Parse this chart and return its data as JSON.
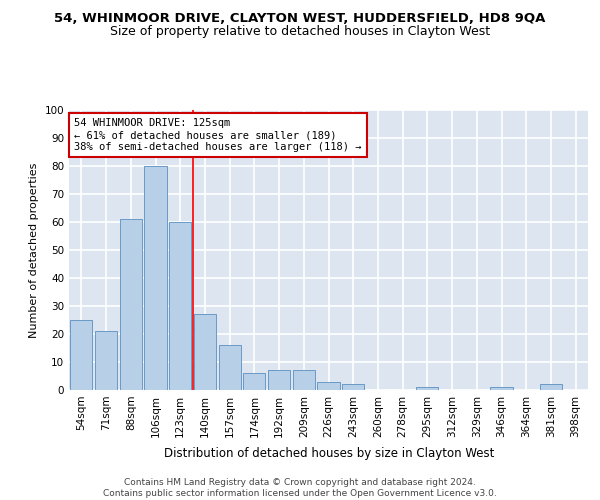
{
  "title1": "54, WHINMOOR DRIVE, CLAYTON WEST, HUDDERSFIELD, HD8 9QA",
  "title2": "Size of property relative to detached houses in Clayton West",
  "xlabel": "Distribution of detached houses by size in Clayton West",
  "ylabel": "Number of detached properties",
  "bar_labels": [
    "54sqm",
    "71sqm",
    "88sqm",
    "106sqm",
    "123sqm",
    "140sqm",
    "157sqm",
    "174sqm",
    "192sqm",
    "209sqm",
    "226sqm",
    "243sqm",
    "260sqm",
    "278sqm",
    "295sqm",
    "312sqm",
    "329sqm",
    "346sqm",
    "364sqm",
    "381sqm",
    "398sqm"
  ],
  "bar_values": [
    25,
    21,
    61,
    80,
    60,
    27,
    16,
    6,
    7,
    7,
    3,
    2,
    0,
    0,
    1,
    0,
    0,
    1,
    0,
    2,
    0
  ],
  "bar_color": "#b8cfe8",
  "bar_edge_color": "#5a8fc0",
  "background_color": "#dde5f0",
  "grid_color": "#ffffff",
  "red_line_x": 4.5,
  "annotation_text": "54 WHINMOOR DRIVE: 125sqm\n← 61% of detached houses are smaller (189)\n38% of semi-detached houses are larger (118) →",
  "annotation_box_color": "#ffffff",
  "annotation_box_edge": "#cc0000",
  "ylim": [
    0,
    100
  ],
  "yticks": [
    0,
    10,
    20,
    30,
    40,
    50,
    60,
    70,
    80,
    90,
    100
  ],
  "footer": "Contains HM Land Registry data © Crown copyright and database right 2024.\nContains public sector information licensed under the Open Government Licence v3.0.",
  "title1_fontsize": 9.5,
  "title2_fontsize": 9,
  "ylabel_fontsize": 8,
  "xlabel_fontsize": 8.5,
  "tick_fontsize": 7.5,
  "annotation_fontsize": 7.5,
  "footer_fontsize": 6.5
}
